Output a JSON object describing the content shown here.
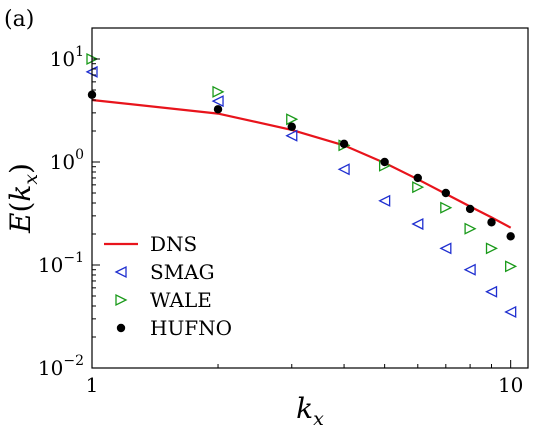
{
  "chart_data": {
    "type": "scatter",
    "panel_label": "(a)",
    "xlabel": "k_x",
    "ylabel": "E(k_x)",
    "xscale": "log",
    "yscale": "log",
    "xlim": [
      1,
      11
    ],
    "ylim": [
      0.01,
      20
    ],
    "x_ticks": [
      {
        "value": 1,
        "label": "1"
      },
      {
        "value": 10,
        "label": "10"
      }
    ],
    "y_ticks": [
      {
        "value": 0.01,
        "base": "10",
        "exp": "−2"
      },
      {
        "value": 0.1,
        "base": "10",
        "exp": "−1"
      },
      {
        "value": 1,
        "base": "10",
        "exp": "0"
      },
      {
        "value": 10,
        "base": "10",
        "exp": "1"
      }
    ],
    "legend_position": "lower-left",
    "series": [
      {
        "name": "DNS",
        "kind": "line",
        "color": "#e8141c",
        "x": [
          1,
          2,
          3,
          4,
          5,
          6,
          7,
          8,
          9,
          10
        ],
        "y": [
          4.0,
          2.95,
          2.05,
          1.45,
          0.98,
          0.68,
          0.49,
          0.37,
          0.29,
          0.23
        ]
      },
      {
        "name": "SMAG",
        "kind": "marker",
        "marker": "triangle-left",
        "color": "#1f2fd0",
        "x": [
          1,
          2,
          3,
          4,
          5,
          6,
          7,
          8,
          9,
          10
        ],
        "y": [
          7.5,
          3.9,
          1.8,
          0.85,
          0.42,
          0.25,
          0.145,
          0.09,
          0.055,
          0.035
        ]
      },
      {
        "name": "WALE",
        "kind": "marker",
        "marker": "triangle-right",
        "color": "#1a9a1a",
        "x": [
          1,
          2,
          3,
          4,
          5,
          6,
          7,
          8,
          9,
          10
        ],
        "y": [
          10.0,
          4.8,
          2.6,
          1.45,
          0.92,
          0.57,
          0.36,
          0.225,
          0.145,
          0.097
        ]
      },
      {
        "name": "HUFNO",
        "kind": "marker",
        "marker": "circle",
        "color": "#000000",
        "x": [
          1,
          2,
          3,
          4,
          5,
          6,
          7,
          8,
          9,
          10
        ],
        "y": [
          4.5,
          3.25,
          2.2,
          1.5,
          1.0,
          0.7,
          0.5,
          0.35,
          0.26,
          0.19
        ]
      }
    ]
  }
}
